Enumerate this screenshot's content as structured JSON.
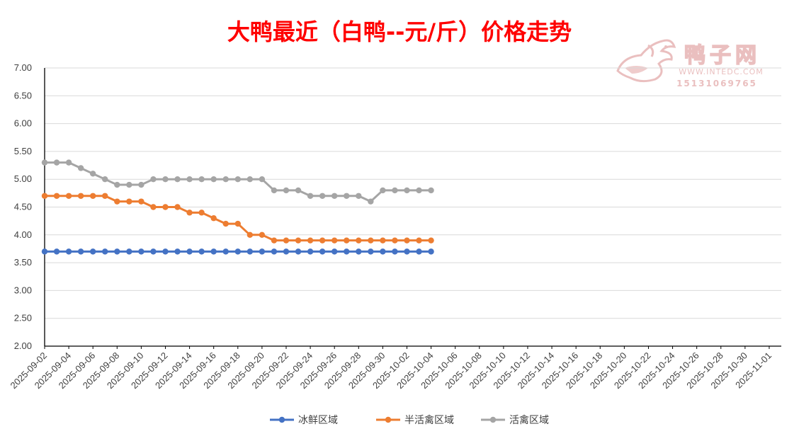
{
  "chart_data": {
    "type": "line",
    "title": "大鸭最近（白鸭--元/斤）价格走势",
    "ylim": [
      2.0,
      7.0
    ],
    "y_ticks": [
      "7.00",
      "6.50",
      "6.00",
      "5.50",
      "5.00",
      "4.50",
      "4.00",
      "3.50",
      "3.00",
      "2.50",
      "2.00"
    ],
    "x_ticks": [
      "2025-09-02",
      "2025-09-04",
      "2025-09-06",
      "2025-09-08",
      "2025-09-10",
      "2025-09-12",
      "2025-09-14",
      "2025-09-16",
      "2025-09-18",
      "2025-09-20",
      "2025-09-22",
      "2025-09-24",
      "2025-09-26",
      "2025-09-28",
      "2025-09-30",
      "2025-10-02",
      "2025-10-04",
      "2025-10-06",
      "2025-10-08",
      "2025-10-10",
      "2025-10-12",
      "2025-10-14",
      "2025-10-16",
      "2025-10-18",
      "2025-10-20",
      "2025-10-22",
      "2025-10-24",
      "2025-10-26",
      "2025-10-28",
      "2025-10-30",
      "2025-11-01"
    ],
    "x_range": [
      "2025-09-02",
      "2025-11-02"
    ],
    "x": [
      "2025-09-02",
      "2025-09-03",
      "2025-09-04",
      "2025-09-05",
      "2025-09-06",
      "2025-09-07",
      "2025-09-08",
      "2025-09-09",
      "2025-09-10",
      "2025-09-11",
      "2025-09-12",
      "2025-09-13",
      "2025-09-14",
      "2025-09-15",
      "2025-09-16",
      "2025-09-17",
      "2025-09-18",
      "2025-09-19",
      "2025-09-20",
      "2025-09-21",
      "2025-09-22",
      "2025-09-23",
      "2025-09-24",
      "2025-09-25",
      "2025-09-26",
      "2025-09-27",
      "2025-09-28",
      "2025-09-29",
      "2025-09-30",
      "2025-10-01",
      "2025-10-02",
      "2025-10-03",
      "2025-10-04"
    ],
    "series": [
      {
        "name": "冰鲜区域",
        "color": "#4472C4",
        "values": [
          3.7,
          3.7,
          3.7,
          3.7,
          3.7,
          3.7,
          3.7,
          3.7,
          3.7,
          3.7,
          3.7,
          3.7,
          3.7,
          3.7,
          3.7,
          3.7,
          3.7,
          3.7,
          3.7,
          3.7,
          3.7,
          3.7,
          3.7,
          3.7,
          3.7,
          3.7,
          3.7,
          3.7,
          3.7,
          3.7,
          3.7,
          3.7,
          3.7
        ]
      },
      {
        "name": "半活禽区域",
        "color": "#ED7D31",
        "values": [
          4.7,
          4.7,
          4.7,
          4.7,
          4.7,
          4.7,
          4.6,
          4.6,
          4.6,
          4.5,
          4.5,
          4.5,
          4.4,
          4.4,
          4.3,
          4.2,
          4.2,
          4.0,
          4.0,
          3.9,
          3.9,
          3.9,
          3.9,
          3.9,
          3.9,
          3.9,
          3.9,
          3.9,
          3.9,
          3.9,
          3.9,
          3.9,
          3.9
        ]
      },
      {
        "name": "活禽区域",
        "color": "#A5A5A5",
        "values": [
          5.3,
          5.3,
          5.3,
          5.2,
          5.1,
          5.0,
          4.9,
          4.9,
          4.9,
          5.0,
          5.0,
          5.0,
          5.0,
          5.0,
          5.0,
          5.0,
          5.0,
          5.0,
          5.0,
          4.8,
          4.8,
          4.8,
          4.7,
          4.7,
          4.7,
          4.7,
          4.7,
          4.6,
          4.8,
          4.8,
          4.8,
          4.8,
          4.8
        ]
      }
    ],
    "grid": true,
    "legend_position": "bottom",
    "title_color": "#FF0000"
  },
  "watermark": {
    "brand": "鸭子网",
    "url": "WWW.INTEDC.COM",
    "phone": "15131069765"
  }
}
